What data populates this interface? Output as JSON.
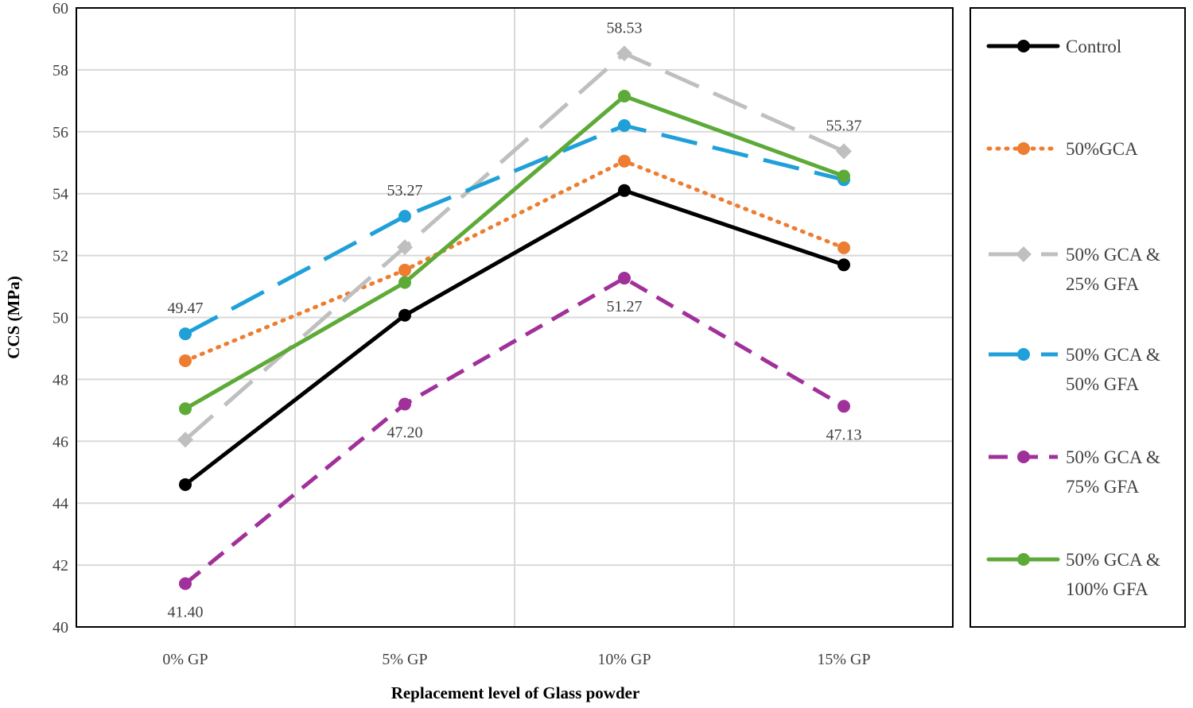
{
  "chart_data": {
    "type": "line",
    "title": "",
    "xlabel": "Replacement level of Glass powder",
    "ylabel": "CCS (MPa)",
    "ylim": [
      40,
      60
    ],
    "yticks": [
      40,
      42,
      44,
      46,
      48,
      50,
      52,
      54,
      56,
      58,
      60
    ],
    "categories": [
      "0% GP",
      "5% GP",
      "10% GP",
      "15% GP"
    ],
    "grid": true,
    "legend_position": "right",
    "series": [
      {
        "name": "Control",
        "legend_lines": [
          "Control"
        ],
        "values": [
          44.6,
          50.07,
          54.1,
          51.7
        ],
        "color": "#000000",
        "dash": "solid"
      },
      {
        "name": "50%GCA",
        "legend_lines": [
          "50%GCA"
        ],
        "values": [
          48.6,
          51.53,
          55.05,
          52.25
        ],
        "color": "#ED7D31",
        "dash": "dot"
      },
      {
        "name": "50% GCA & 25% GFA",
        "legend_lines": [
          "50% GCA &",
          "25% GFA"
        ],
        "values": [
          46.05,
          52.27,
          58.53,
          55.37
        ],
        "color": "#BFBFBF",
        "dash": "longdash",
        "marker": "diamond"
      },
      {
        "name": "50% GCA & 50% GFA",
        "legend_lines": [
          "50% GCA &",
          "50% GFA"
        ],
        "values": [
          49.47,
          53.27,
          56.2,
          54.45
        ],
        "color": "#1FA0D8",
        "dash": "longdash"
      },
      {
        "name": "50% GCA & 75% GFA",
        "legend_lines": [
          "50% GCA &",
          "75% GFA"
        ],
        "values": [
          41.4,
          47.2,
          51.27,
          47.13
        ],
        "color": "#A0309A",
        "dash": "dash"
      },
      {
        "name": "50% GCA & 100% GFA",
        "legend_lines": [
          "50% GCA &",
          "100% GFA"
        ],
        "values": [
          47.05,
          51.13,
          57.15,
          54.57
        ],
        "color": "#5EAA38",
        "dash": "solid"
      }
    ],
    "data_labels": [
      {
        "text": "49.47",
        "category": 0,
        "value": 49.47,
        "placement": "above"
      },
      {
        "text": "41.40",
        "category": 0,
        "value": 41.4,
        "placement": "below"
      },
      {
        "text": "53.27",
        "category": 1,
        "value": 53.27,
        "placement": "above"
      },
      {
        "text": "47.20",
        "category": 1,
        "value": 47.2,
        "placement": "below"
      },
      {
        "text": "58.53",
        "category": 2,
        "value": 58.53,
        "placement": "above"
      },
      {
        "text": "51.27",
        "category": 2,
        "value": 51.27,
        "placement": "below"
      },
      {
        "text": "55.37",
        "category": 3,
        "value": 55.37,
        "placement": "above"
      },
      {
        "text": "47.13",
        "category": 3,
        "value": 47.13,
        "placement": "below"
      }
    ]
  }
}
